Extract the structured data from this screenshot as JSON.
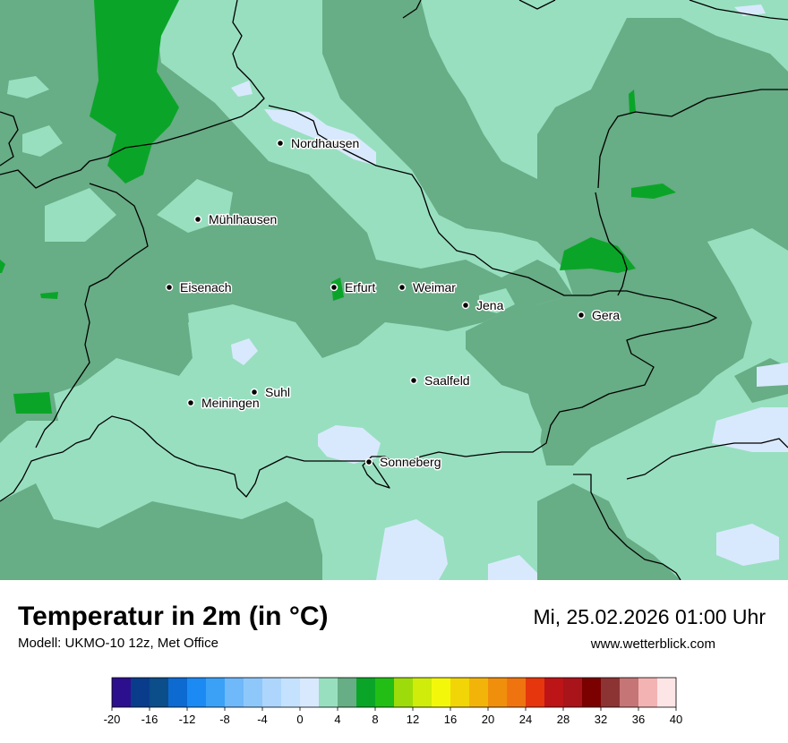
{
  "map": {
    "cities": [
      {
        "name": "Nordhausen"
      },
      {
        "name": "Mühlhausen"
      },
      {
        "name": "Eisenach"
      },
      {
        "name": "Erfurt"
      },
      {
        "name": "Weimar"
      },
      {
        "name": "Jena"
      },
      {
        "name": "Gera"
      },
      {
        "name": "Suhl"
      },
      {
        "name": "Meiningen"
      },
      {
        "name": "Saalfeld"
      },
      {
        "name": "Sonneberg"
      }
    ],
    "colors": {
      "band_0_2": "#d9e9fd",
      "band_2_4": "#98dfc0",
      "band_4_6": "#67ad85",
      "band_6_8": "#0aa528"
    }
  },
  "footer": {
    "title": "Temperatur in 2m (in °C)",
    "subtitle": "Modell: UKMO-10 12z, Met Office",
    "datetime": "Mi, 25.02.2026 01:00 Uhr",
    "website": "www.wetterblick.com"
  },
  "legend": {
    "ticks": [
      "-20",
      "-16",
      "-12",
      "-8",
      "-4",
      "0",
      "4",
      "8",
      "12",
      "16",
      "20",
      "24",
      "28",
      "32",
      "36",
      "40"
    ],
    "colors": [
      "#2c0f8d",
      "#0a3c8c",
      "#0b4e8a",
      "#0d6ad1",
      "#1c8af3",
      "#3ba1f7",
      "#6fb8f9",
      "#8ec8fb",
      "#aed6fc",
      "#c4e2fd",
      "#d9e9fd",
      "#98dfc0",
      "#67ad85",
      "#0aa528",
      "#22be16",
      "#9ddc0a",
      "#cfec0a",
      "#f3f80b",
      "#f2d507",
      "#f3b40a",
      "#f08f0c",
      "#ef7410",
      "#e6360e",
      "#bc1417",
      "#a8141a",
      "#7b0000",
      "#8c3434",
      "#c57575",
      "#f4b3b3",
      "#fde5e6"
    ]
  }
}
